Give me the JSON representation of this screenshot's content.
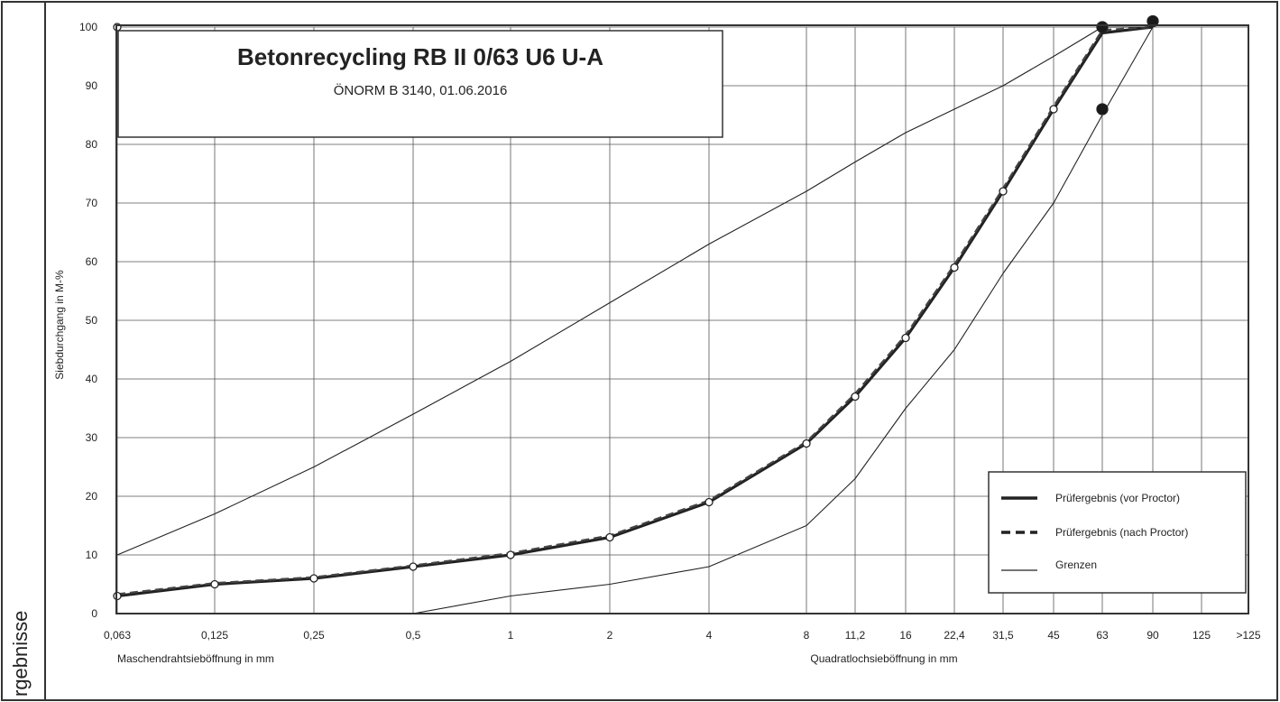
{
  "side_label": "rgebnisse",
  "chart_data": {
    "type": "line",
    "title": "Betonrecycling RB II 0/63 U6 U-A",
    "subtitle": "ÖNORM B 3140, 01.06.2016",
    "ylabel": "Siebdurchgang in M-%",
    "xlabel_left": "Maschendrahtsieböffnung in mm",
    "xlabel_right": "Quadratlochsieböffnung in mm",
    "ylim": [
      0,
      100
    ],
    "y_ticks": [
      "0",
      "10",
      "20",
      "30",
      "40",
      "50",
      "60",
      "70",
      "80",
      "90",
      "100"
    ],
    "categories": [
      "0,063",
      "0,125",
      "0,25",
      "0,5",
      "1",
      "2",
      "4",
      "8",
      "11,2",
      "16",
      "22,4",
      "31,5",
      "45",
      "63",
      "90",
      "125",
      ">125"
    ],
    "grid": true,
    "legend_position": "bottom-right",
    "series": [
      {
        "name": "Prüfergebnis (vor Proctor)",
        "style": "solid-thick",
        "values": [
          3,
          5,
          6,
          8,
          10,
          13,
          19,
          29,
          37,
          47,
          59,
          72,
          86,
          99,
          100,
          null,
          null
        ]
      },
      {
        "name": "Prüfergebnis (nach Proctor)",
        "style": "dashed-thick",
        "values": [
          3.3,
          5.2,
          6.2,
          8.2,
          10.3,
          13.3,
          19.3,
          29.3,
          37.5,
          47.5,
          59.5,
          72.5,
          86.5,
          99.5,
          100,
          null,
          null
        ]
      },
      {
        "name": "Grenzen",
        "style": "thin",
        "values": [
          10,
          17,
          25,
          34,
          43,
          53,
          63,
          72,
          77,
          82,
          86,
          90,
          95,
          100,
          100,
          null,
          null
        ]
      },
      {
        "name": "",
        "style": "thin",
        "values": [
          null,
          null,
          null,
          0,
          3,
          5,
          8,
          15,
          23,
          35,
          45,
          58,
          70,
          85,
          100,
          null,
          null
        ]
      }
    ],
    "markers": [
      {
        "category": "0,063",
        "value": 100,
        "style": "open"
      },
      {
        "category": "63",
        "value": 100,
        "style": "filled"
      },
      {
        "category": "63",
        "value": 86,
        "style": "filled"
      },
      {
        "category": "90",
        "value": 101,
        "style": "filled"
      }
    ]
  }
}
